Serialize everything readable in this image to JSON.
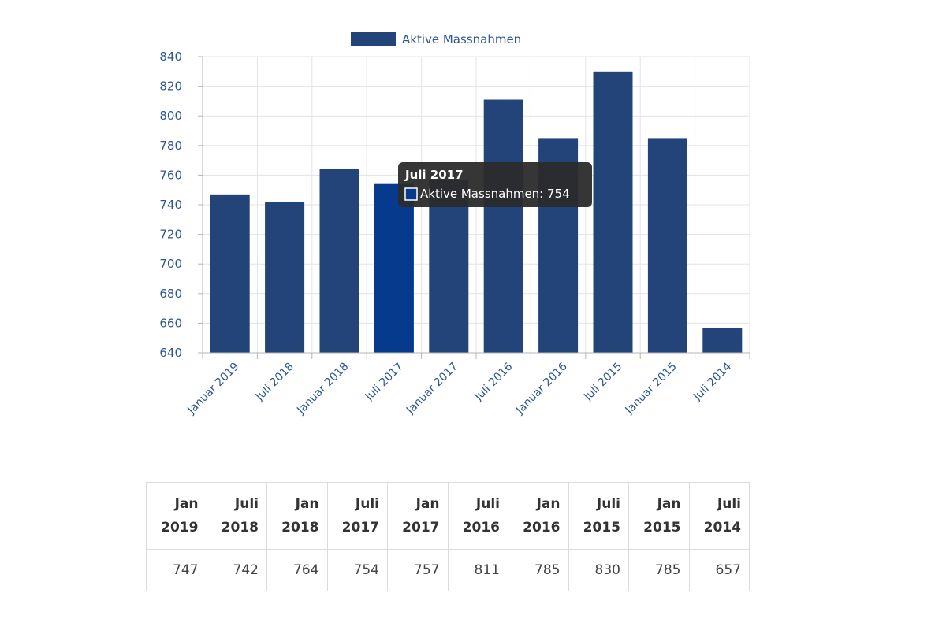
{
  "colors": {
    "bar": "#224478",
    "bar_highlight": "#063a8c",
    "grid": "#e3e3e3",
    "axis": "#b5b5b5",
    "label": "#2d5791",
    "tooltip_bg": "#2b2b2b"
  },
  "chart_data": {
    "type": "bar",
    "categories": [
      "Januar 2019",
      "Juli 2018",
      "Januar 2018",
      "Juli 2017",
      "Januar 2017",
      "Juli 2016",
      "Januar 2016",
      "Juli 2015",
      "Januar 2015",
      "Juli 2014"
    ],
    "series": [
      {
        "name": "Aktive Massnahmen",
        "values": [
          747,
          742,
          764,
          754,
          757,
          811,
          785,
          830,
          785,
          657
        ]
      }
    ],
    "ylim": [
      640,
      840
    ],
    "yticks": [
      640,
      660,
      680,
      700,
      720,
      740,
      760,
      780,
      800,
      820,
      840
    ],
    "grid": true,
    "legend_position": "top-center",
    "tooltip": {
      "title": "Juli 2017",
      "text": "Aktive Massnahmen: 754",
      "category_index": 3
    }
  },
  "table": {
    "headers": [
      [
        "Jan",
        "2019"
      ],
      [
        "Juli",
        "2018"
      ],
      [
        "Jan",
        "2018"
      ],
      [
        "Juli",
        "2017"
      ],
      [
        "Jan",
        "2017"
      ],
      [
        "Juli",
        "2016"
      ],
      [
        "Jan",
        "2016"
      ],
      [
        "Juli",
        "2015"
      ],
      [
        "Jan",
        "2015"
      ],
      [
        "Juli",
        "2014"
      ]
    ],
    "values": [
      "747",
      "742",
      "764",
      "754",
      "757",
      "811",
      "785",
      "830",
      "785",
      "657"
    ]
  }
}
